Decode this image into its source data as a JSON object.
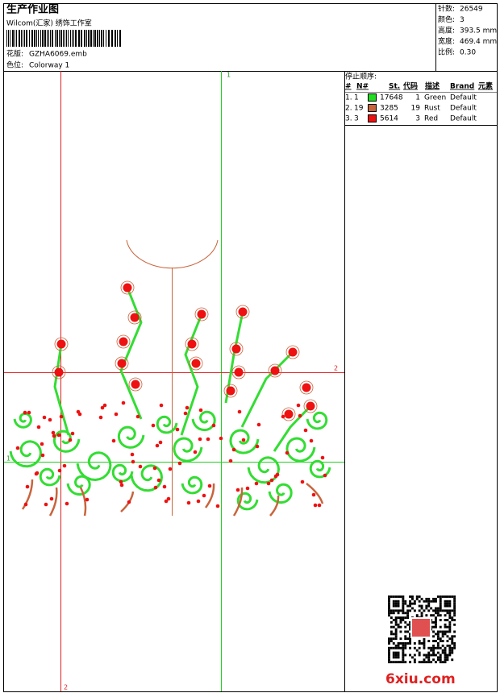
{
  "header": {
    "title": "生产作业图",
    "company": "Wilcom(汇家) 绣饰工作室",
    "design_label": "花版:",
    "design_file": "GZHA6069.emb",
    "colorway_label": "色位:",
    "colorway": "Colorway 1",
    "stats": [
      {
        "label": "针数:",
        "value": "26549"
      },
      {
        "label": "颜色:",
        "value": "3"
      },
      {
        "label": "高度:",
        "value": "393.5 mm"
      },
      {
        "label": "宽度:",
        "value": "469.4 mm"
      },
      {
        "label": "比例:",
        "value": "0.30"
      }
    ]
  },
  "stop_sequence": {
    "title": "停止顺序:",
    "columns": [
      "#",
      "N#",
      "St.",
      "代码",
      "描述",
      "Brand",
      "元素"
    ],
    "rows": [
      {
        "index": "1.",
        "needle": "1",
        "color": "#22dd22",
        "stitches": "17648",
        "code": "1",
        "description": "Green",
        "brand": "Default"
      },
      {
        "index": "2.",
        "needle": "19",
        "color": "#c8643c",
        "stitches": "3285",
        "code": "19",
        "description": "Rust",
        "brand": "Default"
      },
      {
        "index": "3.",
        "needle": "3",
        "color": "#ee1111",
        "stitches": "5614",
        "code": "3",
        "description": "Red",
        "brand": "Default"
      }
    ]
  },
  "markers": {
    "top": "1",
    "right": "2",
    "left": "1",
    "bottom": "2"
  },
  "watermark": "6xiu.com"
}
